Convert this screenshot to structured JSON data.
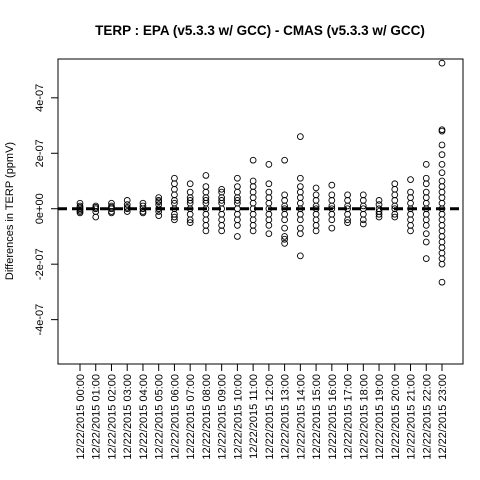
{
  "chart_data": {
    "type": "scatter",
    "title": "TERP : EPA (v5.3.3 w/ GCC) - CMAS (v5.3.3 w/ GCC)",
    "xlabel": "",
    "ylabel": "Differences in TERP (ppmV)",
    "ylim": [
      -5.6e-07,
      5.4e-07
    ],
    "yticks": [
      -4e-07,
      -2e-07,
      0,
      2e-07,
      4e-07
    ],
    "ytick_labels": [
      "-4e-07",
      "-2e-07",
      "0e+00",
      "2e-07",
      "4e-07"
    ],
    "grid": false,
    "legend": "none",
    "reference_line": {
      "y": 0,
      "style": "dashed"
    },
    "categories": [
      "12/22/2015 00:00",
      "12/22/2015 01:00",
      "12/22/2015 02:00",
      "12/22/2015 03:00",
      "12/22/2015 04:00",
      "12/22/2015 05:00",
      "12/22/2015 06:00",
      "12/22/2015 07:00",
      "12/22/2015 08:00",
      "12/22/2015 09:00",
      "12/22/2015 10:00",
      "12/22/2015 11:00",
      "12/22/2015 12:00",
      "12/22/2015 13:00",
      "12/22/2015 14:00",
      "12/22/2015 15:00",
      "12/22/2015 16:00",
      "12/22/2015 17:00",
      "12/22/2015 18:00",
      "12/22/2015 19:00",
      "12/22/2015 20:00",
      "12/22/2015 21:00",
      "12/22/2015 22:00",
      "12/22/2015 23:00"
    ],
    "series": [
      {
        "values": [
          [
            0,
            -1e-08,
            1e-08,
            2e-08,
            -1.5e-08,
            5e-09,
            -5e-09
          ],
          [
            0,
            -3e-08,
            1e-08,
            -1e-08,
            5e-09
          ],
          [
            0,
            -1.5e-08,
            1e-08,
            2e-08,
            -1e-08,
            5e-09
          ],
          [
            0,
            3e-08,
            -1e-08,
            1.5e-08,
            5e-09
          ],
          [
            0,
            -1.5e-08,
            1e-08,
            2e-08,
            -1e-08
          ],
          [
            0,
            -2.5e-08,
            2.5e-08,
            4e-08,
            1.5e-08,
            -1e-08,
            3e-08
          ],
          [
            0,
            1.1e-07,
            9e-08,
            7e-08,
            5e-08,
            3e-08,
            -2e-08,
            -4e-08,
            -3e-08,
            2e-08
          ],
          [
            0,
            9e-08,
            6e-08,
            4e-08,
            2e-08,
            -2e-08,
            -4e-08,
            -5e-08,
            3e-08
          ],
          [
            0,
            1.2e-07,
            8e-08,
            6e-08,
            4e-08,
            2e-08,
            -2e-08,
            -4e-08,
            -6e-08,
            -8e-08,
            3e-08
          ],
          [
            0,
            7e-08,
            6e-08,
            4e-08,
            2e-08,
            -2e-08,
            -4e-08,
            -6e-08,
            -8e-08,
            3e-08
          ],
          [
            0,
            1.1e-07,
            8e-08,
            6e-08,
            4e-08,
            2e-08,
            -2e-08,
            -4e-08,
            -6e-08,
            -1e-07,
            3e-08
          ],
          [
            0,
            1.75e-07,
            1e-07,
            8e-08,
            6e-08,
            4e-08,
            2e-08,
            -2e-08,
            -4e-08,
            -6e-08,
            -8e-08
          ],
          [
            0,
            1.6e-07,
            9e-08,
            6e-08,
            4e-08,
            2e-08,
            -2e-08,
            -4e-08,
            -6e-08,
            -9e-08
          ],
          [
            0,
            1.75e-07,
            5e-08,
            3e-08,
            1e-08,
            -2e-08,
            -4e-08,
            -7e-08,
            -1e-07,
            -1.25e-07,
            -1.1e-07
          ],
          [
            0,
            2.6e-07,
            1.1e-07,
            8e-08,
            6e-08,
            4e-08,
            2e-08,
            -2e-08,
            -4e-08,
            -7e-08,
            -9e-08,
            -1.7e-07
          ],
          [
            0,
            7.5e-08,
            5e-08,
            3e-08,
            1e-08,
            -2e-08,
            -4e-08,
            -6e-08,
            -8e-08
          ],
          [
            0,
            8.5e-08,
            5e-08,
            3e-08,
            1e-08,
            -2e-08,
            -4e-08,
            -7e-08
          ],
          [
            0,
            5e-08,
            3e-08,
            1e-08,
            -2e-08,
            -4e-08,
            -5e-08
          ],
          [
            0,
            5e-08,
            3e-08,
            1e-08,
            -2e-08,
            -4e-08,
            -5.5e-08
          ],
          [
            0,
            3e-08,
            1.5e-08,
            -1e-08,
            -2e-08,
            -3e-08
          ],
          [
            0,
            9e-08,
            7e-08,
            5e-08,
            3e-08,
            1e-08,
            -2e-08,
            -3e-08
          ],
          [
            0,
            1.05e-07,
            6e-08,
            4e-08,
            2e-08,
            -2e-08,
            -4e-08,
            -6e-08,
            -8e-08
          ],
          [
            0,
            1.6e-07,
            1.1e-07,
            9e-08,
            6e-08,
            4e-08,
            2e-08,
            -2e-08,
            -4e-08,
            -6e-08,
            -9e-08,
            -1.2e-07,
            -1.8e-07
          ],
          [
            0,
            5.25e-07,
            2.85e-07,
            2.8e-07,
            2.3e-07,
            1.95e-07,
            1.6e-07,
            1.3e-07,
            1e-07,
            8e-08,
            6e-08,
            4e-08,
            2e-08,
            -2e-08,
            -4e-08,
            -6e-08,
            -8e-08,
            -1e-07,
            -1.2e-07,
            -1.4e-07,
            -1.6e-07,
            -1.8e-07,
            -2e-07,
            -2.65e-07
          ]
        ]
      }
    ]
  }
}
